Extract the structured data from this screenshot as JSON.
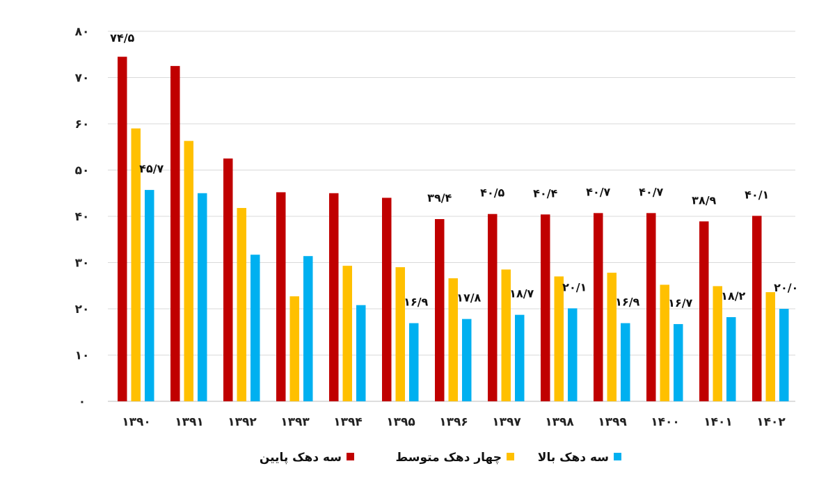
{
  "chart_data": {
    "type": "bar",
    "categories": [
      "۱۳۹۰",
      "۱۳۹۱",
      "۱۳۹۲",
      "۱۳۹۳",
      "۱۳۹۴",
      "۱۳۹۵",
      "۱۳۹۶",
      "۱۳۹۷",
      "۱۳۹۸",
      "۱۳۹۹",
      "۱۴۰۰",
      "۱۴۰۱",
      "۱۴۰۲"
    ],
    "ylim": [
      0,
      80
    ],
    "yticks": [
      0,
      10,
      20,
      30,
      40,
      50,
      60,
      70,
      80
    ],
    "ytick_labels": [
      "۰",
      "۱۰",
      "۲۰",
      "۳۰",
      "۴۰",
      "۵۰",
      "۶۰",
      "۷۰",
      "۸۰"
    ],
    "grid": true,
    "legend_position": "bottom",
    "series": [
      {
        "name": "سه دهک پایین",
        "color": "#c00000",
        "values": [
          74.5,
          72.5,
          52.5,
          45.2,
          45.0,
          44.0,
          39.4,
          40.5,
          40.4,
          40.7,
          40.7,
          38.9,
          40.1
        ],
        "labels": [
          "۷۴/۵",
          "",
          "",
          "",
          "",
          "",
          "۳۹/۴",
          "۴۰/۵",
          "۴۰/۴",
          "۴۰/۷",
          "۴۰/۷",
          "۳۸/۹",
          "۴۰/۱"
        ]
      },
      {
        "name": "چهار دهک متوسط",
        "color": "#ffc000",
        "values": [
          59.0,
          56.3,
          41.8,
          22.7,
          29.3,
          29.0,
          26.6,
          28.5,
          27.0,
          27.8,
          25.2,
          24.9,
          23.6
        ],
        "labels": [
          "",
          "",
          "",
          "",
          "",
          "",
          "",
          "",
          "",
          "",
          "",
          "",
          ""
        ]
      },
      {
        "name": "سه دهک بالا",
        "color": "#00b0f0",
        "values": [
          45.7,
          45.0,
          31.7,
          31.4,
          20.8,
          16.9,
          17.8,
          18.7,
          20.1,
          16.9,
          16.7,
          18.2,
          20.0
        ],
        "labels": [
          "۴۵/۷",
          "",
          "",
          "",
          "",
          "۱۶/۹",
          "۱۷/۸",
          "۱۸/۷",
          "۲۰/۱",
          "۱۶/۹",
          "۱۶/۷",
          "۱۸/۲",
          "۲۰/۰"
        ]
      }
    ]
  }
}
